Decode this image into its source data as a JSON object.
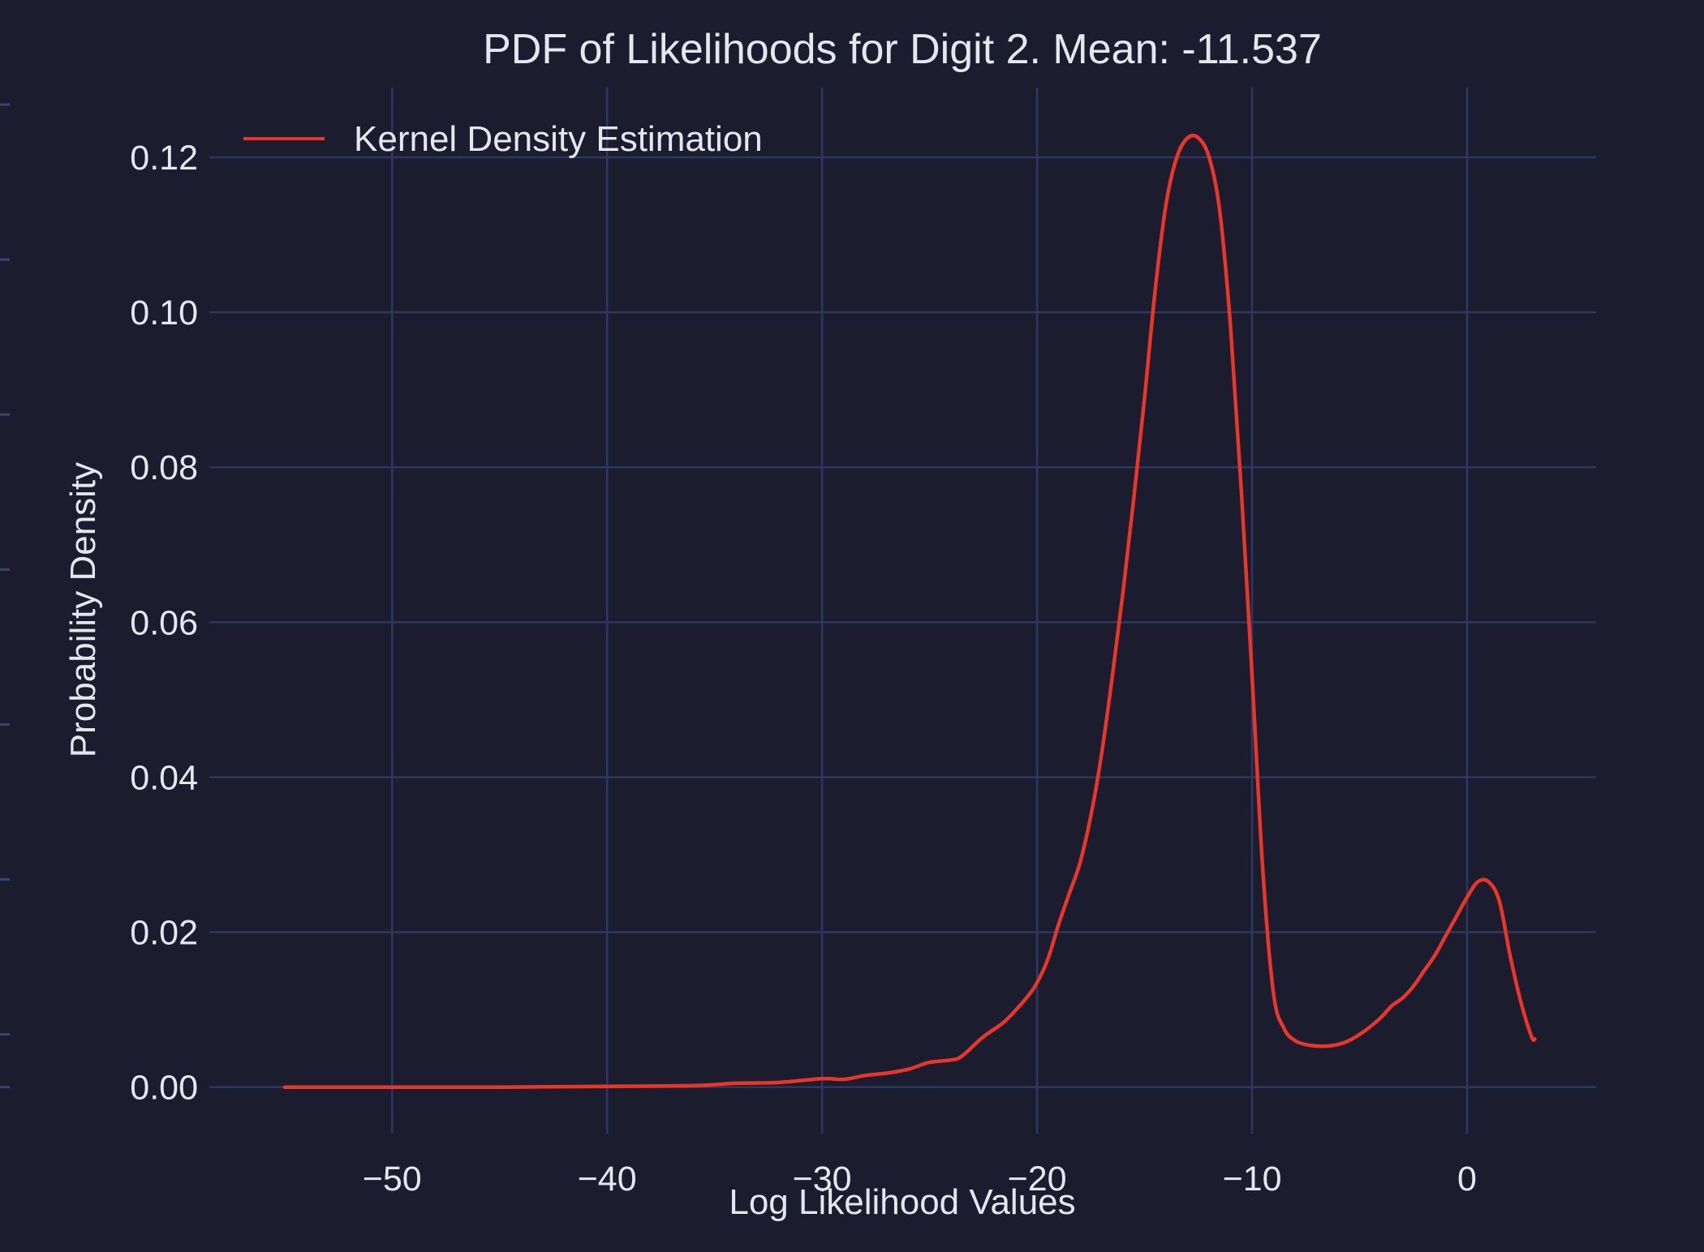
{
  "colors": {
    "background": "#1b1c2e",
    "grid": "#2e3760",
    "text": "#e6e6ee",
    "line": "#e8362a",
    "edge_ticks": "#3a4570"
  },
  "chart_data": {
    "type": "line",
    "title": "PDF of Likelihoods for Digit 2. Mean: -11.537",
    "xlabel": "Log Likelihood Values",
    "ylabel": "Probability Density",
    "xlim": [
      -58.5,
      6
    ],
    "ylim": [
      -0.006,
      0.129
    ],
    "grid": true,
    "legend_position": "top-left",
    "x_ticks": [
      -50,
      -40,
      -30,
      -20,
      -10,
      0
    ],
    "x_tick_labels": [
      "−50",
      "−40",
      "−30",
      "−20",
      "−10",
      "0"
    ],
    "y_ticks": [
      0.0,
      0.02,
      0.04,
      0.06,
      0.08,
      0.1,
      0.12
    ],
    "y_tick_labels": [
      "0.00",
      "0.02",
      "0.04",
      "0.06",
      "0.08",
      "0.10",
      "0.12"
    ],
    "series": [
      {
        "name": "Kernel Density Estimation",
        "x": [
          -55,
          -50,
          -45,
          -40,
          -36,
          -34,
          -32,
          -30,
          -29,
          -28,
          -27,
          -26,
          -25,
          -24,
          -23.5,
          -22.5,
          -21.5,
          -20.5,
          -20,
          -19.5,
          -19,
          -18.5,
          -18,
          -17.5,
          -17,
          -16.5,
          -16,
          -15.5,
          -15,
          -14.5,
          -14,
          -13.5,
          -13,
          -12.5,
          -12,
          -11.5,
          -11,
          -10.5,
          -10,
          -9.5,
          -9,
          -8.5,
          -8,
          -7.5,
          -7,
          -6.5,
          -6,
          -5.5,
          -5,
          -4.5,
          -4,
          -3.5,
          -3,
          -2.5,
          -2,
          -1.5,
          -1,
          -0.5,
          0,
          0.5,
          1,
          1.5,
          2,
          2.5,
          3,
          3.15
        ],
        "values": [
          0.0,
          0.0,
          0.0,
          0.0001,
          0.0002,
          0.0005,
          0.0006,
          0.0011,
          0.001,
          0.0015,
          0.0018,
          0.0023,
          0.0032,
          0.0035,
          0.004,
          0.0065,
          0.0085,
          0.0115,
          0.0135,
          0.0165,
          0.021,
          0.025,
          0.029,
          0.035,
          0.043,
          0.053,
          0.064,
          0.076,
          0.089,
          0.103,
          0.114,
          0.12,
          0.1225,
          0.1225,
          0.12,
          0.113,
          0.098,
          0.077,
          0.053,
          0.028,
          0.012,
          0.0075,
          0.006,
          0.0055,
          0.0053,
          0.0053,
          0.0055,
          0.006,
          0.0068,
          0.0078,
          0.009,
          0.0105,
          0.0115,
          0.013,
          0.015,
          0.017,
          0.0195,
          0.022,
          0.0245,
          0.0265,
          0.0265,
          0.024,
          0.017,
          0.011,
          0.0065,
          0.0062
        ]
      }
    ]
  }
}
